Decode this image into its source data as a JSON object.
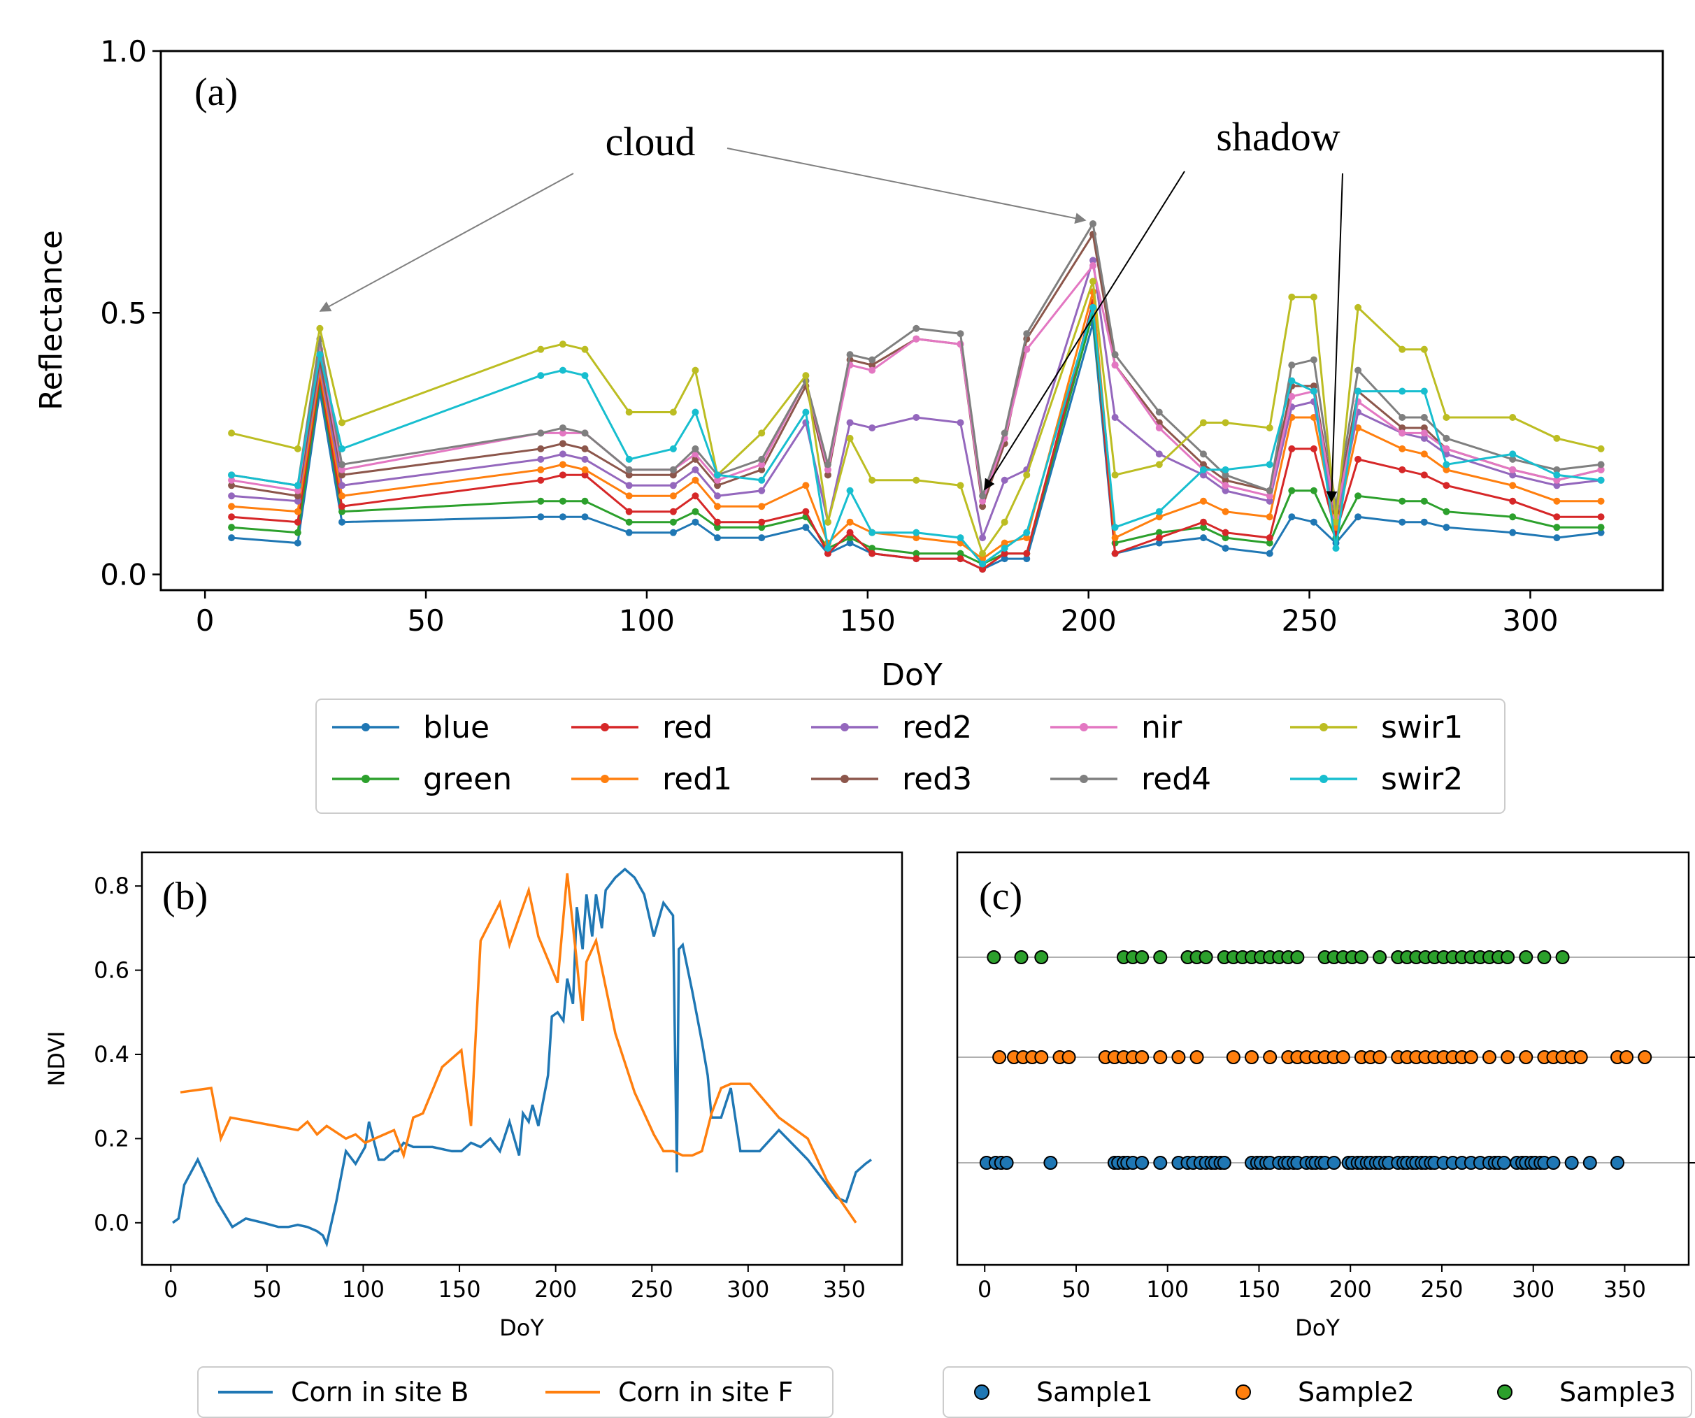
{
  "chart_data": [
    {
      "type": "line",
      "panel_label": "(a)",
      "xlabel": "DoY",
      "ylabel": "Reflectance",
      "xlim": [
        -10,
        330
      ],
      "ylim": [
        -0.03,
        1.0
      ],
      "xticks": [
        "0",
        "50",
        "100",
        "150",
        "200",
        "250",
        "300"
      ],
      "yticks": [
        "0.0",
        "0.5",
        "1.0"
      ],
      "annotations": [
        {
          "text": "cloud",
          "points_to_doy": [
            26,
            201
          ]
        },
        {
          "text": "shadow",
          "points_to_doy": [
            176,
            256
          ]
        }
      ],
      "legend_placement": "below",
      "x": [
        6,
        21,
        26,
        31,
        76,
        81,
        86,
        96,
        106,
        111,
        116,
        126,
        136,
        141,
        146,
        151,
        161,
        171,
        176,
        181,
        186,
        201,
        206,
        216,
        226,
        231,
        241,
        246,
        251,
        256,
        261,
        271,
        276,
        281,
        296,
        306,
        316
      ],
      "series": [
        {
          "name": "blue",
          "color": "#1f77b4",
          "values": [
            0.07,
            0.06,
            0.35,
            0.1,
            0.11,
            0.11,
            0.11,
            0.08,
            0.08,
            0.1,
            0.07,
            0.07,
            0.09,
            0.04,
            0.06,
            0.04,
            0.03,
            0.03,
            0.01,
            0.03,
            0.03,
            0.48,
            0.04,
            0.06,
            0.07,
            0.05,
            0.04,
            0.11,
            0.1,
            0.06,
            0.11,
            0.1,
            0.1,
            0.09,
            0.08,
            0.07,
            0.08
          ]
        },
        {
          "name": "green",
          "color": "#2ca02c",
          "values": [
            0.09,
            0.08,
            0.37,
            0.12,
            0.14,
            0.14,
            0.14,
            0.1,
            0.1,
            0.12,
            0.09,
            0.09,
            0.11,
            0.05,
            0.07,
            0.05,
            0.04,
            0.04,
            0.02,
            0.04,
            0.04,
            0.5,
            0.06,
            0.08,
            0.09,
            0.07,
            0.06,
            0.16,
            0.16,
            0.07,
            0.15,
            0.14,
            0.14,
            0.12,
            0.11,
            0.09,
            0.09
          ]
        },
        {
          "name": "red",
          "color": "#d62728",
          "values": [
            0.11,
            0.1,
            0.38,
            0.13,
            0.18,
            0.19,
            0.19,
            0.12,
            0.12,
            0.15,
            0.1,
            0.1,
            0.12,
            0.04,
            0.08,
            0.04,
            0.03,
            0.03,
            0.01,
            0.04,
            0.04,
            0.52,
            0.04,
            0.07,
            0.1,
            0.08,
            0.07,
            0.24,
            0.24,
            0.08,
            0.22,
            0.2,
            0.19,
            0.17,
            0.14,
            0.11,
            0.11
          ]
        },
        {
          "name": "red1",
          "color": "#ff7f0e",
          "values": [
            0.13,
            0.12,
            0.39,
            0.15,
            0.2,
            0.21,
            0.2,
            0.15,
            0.15,
            0.18,
            0.13,
            0.13,
            0.17,
            0.06,
            0.1,
            0.08,
            0.07,
            0.06,
            0.03,
            0.06,
            0.07,
            0.54,
            0.07,
            0.11,
            0.14,
            0.12,
            0.11,
            0.3,
            0.3,
            0.09,
            0.28,
            0.24,
            0.23,
            0.2,
            0.17,
            0.14,
            0.14
          ]
        },
        {
          "name": "red2",
          "color": "#9467bd",
          "values": [
            0.15,
            0.14,
            0.4,
            0.17,
            0.22,
            0.23,
            0.22,
            0.17,
            0.17,
            0.2,
            0.15,
            0.16,
            0.29,
            0.1,
            0.29,
            0.28,
            0.3,
            0.29,
            0.07,
            0.18,
            0.2,
            0.6,
            0.3,
            0.23,
            0.19,
            0.16,
            0.14,
            0.32,
            0.33,
            0.1,
            0.31,
            0.27,
            0.26,
            0.23,
            0.19,
            0.17,
            0.18
          ]
        },
        {
          "name": "red3",
          "color": "#8c564b",
          "values": [
            0.17,
            0.15,
            0.41,
            0.19,
            0.24,
            0.25,
            0.24,
            0.19,
            0.19,
            0.22,
            0.17,
            0.2,
            0.36,
            0.19,
            0.41,
            0.4,
            0.45,
            0.44,
            0.13,
            0.25,
            0.45,
            0.65,
            0.4,
            0.29,
            0.21,
            0.18,
            0.16,
            0.36,
            0.36,
            0.12,
            0.35,
            0.28,
            0.28,
            0.24,
            0.2,
            0.18,
            0.2
          ]
        },
        {
          "name": "nir",
          "color": "#e377c2",
          "values": [
            0.18,
            0.16,
            0.43,
            0.2,
            0.27,
            0.27,
            0.27,
            0.2,
            0.2,
            0.23,
            0.18,
            0.21,
            0.37,
            0.2,
            0.4,
            0.39,
            0.45,
            0.44,
            0.14,
            0.26,
            0.43,
            0.59,
            0.4,
            0.28,
            0.2,
            0.17,
            0.15,
            0.34,
            0.35,
            0.11,
            0.33,
            0.27,
            0.27,
            0.24,
            0.2,
            0.18,
            0.2
          ]
        },
        {
          "name": "red4",
          "color": "#7f7f7f",
          "values": [
            0.19,
            0.17,
            0.45,
            0.21,
            0.27,
            0.28,
            0.27,
            0.2,
            0.2,
            0.24,
            0.19,
            0.22,
            0.37,
            0.21,
            0.42,
            0.41,
            0.47,
            0.46,
            0.15,
            0.27,
            0.46,
            0.67,
            0.42,
            0.31,
            0.23,
            0.19,
            0.16,
            0.4,
            0.41,
            0.13,
            0.39,
            0.3,
            0.3,
            0.26,
            0.22,
            0.2,
            0.21
          ]
        },
        {
          "name": "swir1",
          "color": "#bcbd22",
          "values": [
            0.27,
            0.24,
            0.47,
            0.29,
            0.43,
            0.44,
            0.43,
            0.31,
            0.31,
            0.39,
            0.19,
            0.27,
            0.38,
            0.1,
            0.26,
            0.18,
            0.18,
            0.17,
            0.04,
            0.1,
            0.19,
            0.56,
            0.19,
            0.21,
            0.29,
            0.29,
            0.28,
            0.53,
            0.53,
            0.1,
            0.51,
            0.43,
            0.43,
            0.3,
            0.3,
            0.26,
            0.24
          ]
        },
        {
          "name": "swir2",
          "color": "#17becf",
          "values": [
            0.19,
            0.17,
            0.42,
            0.24,
            0.38,
            0.39,
            0.38,
            0.22,
            0.24,
            0.31,
            0.19,
            0.18,
            0.31,
            0.05,
            0.16,
            0.08,
            0.08,
            0.07,
            0.02,
            0.05,
            0.08,
            0.51,
            0.09,
            0.12,
            0.2,
            0.2,
            0.21,
            0.37,
            0.35,
            0.05,
            0.35,
            0.35,
            0.35,
            0.21,
            0.23,
            0.19,
            0.18
          ]
        }
      ]
    },
    {
      "type": "line",
      "panel_label": "(b)",
      "xlabel": "DoY",
      "ylabel": "NDVI",
      "xlim": [
        -15,
        380
      ],
      "ylim": [
        -0.1,
        0.88
      ],
      "xticks": [
        "0",
        "50",
        "100",
        "150",
        "200",
        "250",
        "300",
        "350"
      ],
      "yticks": [
        "0.0",
        "0.2",
        "0.4",
        "0.6",
        "0.8"
      ],
      "legend_placement": "below",
      "series": [
        {
          "name": "Corn in site B",
          "color": "#1f77b4",
          "x": [
            1,
            4,
            7,
            14,
            24,
            32,
            39,
            48,
            56,
            61,
            66,
            71,
            76,
            79,
            81,
            86,
            91,
            96,
            101,
            103,
            108,
            111,
            116,
            118,
            121,
            126,
            136,
            146,
            151,
            156,
            161,
            166,
            171,
            176,
            181,
            183,
            186,
            188,
            191,
            196,
            198,
            201,
            204,
            206,
            209,
            211,
            214,
            216,
            219,
            221,
            224,
            226,
            231,
            236,
            241,
            246,
            251,
            256,
            261,
            263,
            264,
            266,
            271,
            276,
            279,
            281,
            286,
            291,
            296,
            306,
            316,
            331,
            346,
            351,
            356,
            361,
            364
          ],
          "values": [
            0.0,
            0.01,
            0.09,
            0.15,
            0.05,
            -0.01,
            0.01,
            0.0,
            -0.01,
            -0.01,
            -0.005,
            -0.01,
            -0.02,
            -0.03,
            -0.05,
            0.05,
            0.17,
            0.14,
            0.18,
            0.24,
            0.15,
            0.15,
            0.17,
            0.17,
            0.19,
            0.18,
            0.18,
            0.17,
            0.17,
            0.19,
            0.18,
            0.2,
            0.17,
            0.24,
            0.16,
            0.26,
            0.24,
            0.28,
            0.23,
            0.35,
            0.49,
            0.5,
            0.48,
            0.58,
            0.52,
            0.75,
            0.65,
            0.78,
            0.68,
            0.78,
            0.7,
            0.79,
            0.82,
            0.84,
            0.82,
            0.78,
            0.68,
            0.76,
            0.73,
            0.12,
            0.65,
            0.66,
            0.55,
            0.43,
            0.35,
            0.25,
            0.25,
            0.32,
            0.17,
            0.17,
            0.22,
            0.15,
            0.06,
            0.05,
            0.12,
            0.14,
            0.15
          ]
        },
        {
          "name": "Corn in site F",
          "color": "#ff7f0e",
          "x": [
            5,
            21,
            26,
            31,
            66,
            71,
            76,
            81,
            91,
            96,
            101,
            106,
            111,
            116,
            121,
            126,
            131,
            141,
            151,
            156,
            161,
            171,
            176,
            186,
            191,
            201,
            206,
            211,
            214,
            216,
            221,
            231,
            241,
            251,
            256,
            261,
            266,
            271,
            276,
            281,
            286,
            291,
            301,
            316,
            331,
            341,
            356
          ],
          "values": [
            0.31,
            0.32,
            0.2,
            0.25,
            0.22,
            0.24,
            0.21,
            0.23,
            0.2,
            0.21,
            0.19,
            0.2,
            0.21,
            0.22,
            0.16,
            0.25,
            0.26,
            0.37,
            0.41,
            0.23,
            0.67,
            0.76,
            0.66,
            0.79,
            0.68,
            0.57,
            0.83,
            0.62,
            0.48,
            0.62,
            0.67,
            0.45,
            0.31,
            0.21,
            0.17,
            0.17,
            0.16,
            0.16,
            0.17,
            0.26,
            0.32,
            0.33,
            0.33,
            0.25,
            0.2,
            0.1,
            0.0
          ]
        }
      ]
    },
    {
      "type": "scatter",
      "panel_label": "(c)",
      "xlabel": "DoY",
      "xlim": [
        -15,
        385
      ],
      "xticks": [
        "0",
        "50",
        "100",
        "150",
        "200",
        "250",
        "300",
        "350"
      ],
      "legend_placement": "below",
      "series": [
        {
          "name": "Sample1",
          "color": "#1f77b4",
          "level": 1,
          "x": [
            1,
            6,
            9,
            12,
            36,
            71,
            73,
            76,
            78,
            81,
            86,
            96,
            106,
            111,
            114,
            118,
            121,
            124,
            126,
            129,
            131,
            146,
            149,
            151,
            154,
            156,
            161,
            164,
            166,
            169,
            171,
            176,
            179,
            181,
            184,
            186,
            191,
            199,
            201,
            204,
            206,
            209,
            211,
            214,
            216,
            219,
            221,
            226,
            229,
            231,
            234,
            236,
            239,
            241,
            244,
            246,
            251,
            256,
            261,
            266,
            271,
            276,
            279,
            281,
            284,
            291,
            294,
            296,
            299,
            301,
            304,
            306,
            311,
            321,
            331,
            346
          ]
        },
        {
          "name": "Sample2",
          "color": "#ff7f0e",
          "level": 2,
          "x": [
            8,
            16,
            21,
            26,
            31,
            41,
            46,
            66,
            71,
            76,
            81,
            86,
            96,
            106,
            116,
            136,
            146,
            156,
            166,
            171,
            176,
            181,
            186,
            191,
            196,
            206,
            211,
            216,
            226,
            231,
            236,
            241,
            246,
            251,
            256,
            261,
            266,
            276,
            286,
            296,
            306,
            311,
            316,
            321,
            326,
            346,
            351,
            361
          ]
        },
        {
          "name": "Sample3",
          "color": "#2ca02c",
          "level": 3,
          "x": [
            5,
            20,
            31,
            76,
            81,
            86,
            96,
            111,
            116,
            121,
            131,
            136,
            141,
            146,
            151,
            156,
            161,
            166,
            171,
            186,
            191,
            196,
            201,
            206,
            216,
            226,
            231,
            236,
            241,
            246,
            251,
            256,
            261,
            266,
            271,
            276,
            281,
            286,
            296,
            306,
            316
          ]
        }
      ]
    }
  ]
}
